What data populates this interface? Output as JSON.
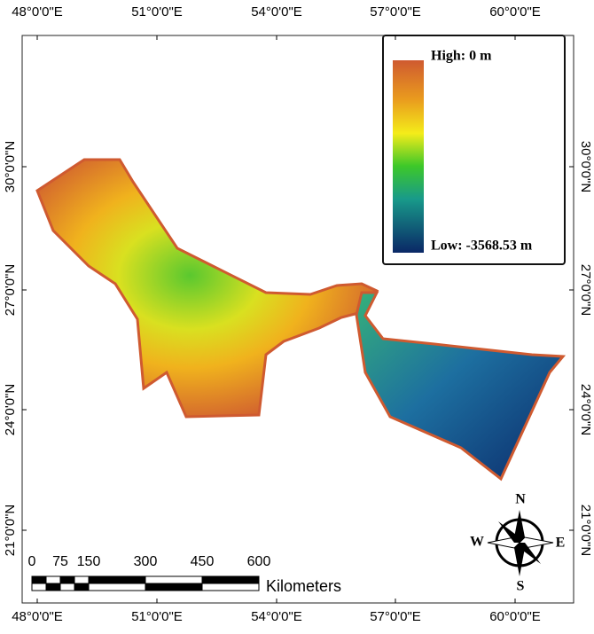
{
  "map": {
    "longitude_labels": [
      "48°0'0\"E",
      "51°0'0\"E",
      "54°0'0\"E",
      "57°0'0\"E",
      "60°0'0\"E"
    ],
    "latitude_labels": [
      "30°0'0\"N",
      "27°0'0\"N",
      "24°0'0\"N",
      "21°0'0\"N"
    ],
    "legend": {
      "high": "High: 0 m",
      "low": "Low: -3568.53 m"
    },
    "scale_bar": {
      "labels": [
        "0",
        "75",
        "150",
        "300",
        "450",
        "600"
      ],
      "unit": "Kilometers"
    },
    "compass": {
      "north": "N",
      "south": "S",
      "west": "W",
      "east": "E"
    }
  }
}
